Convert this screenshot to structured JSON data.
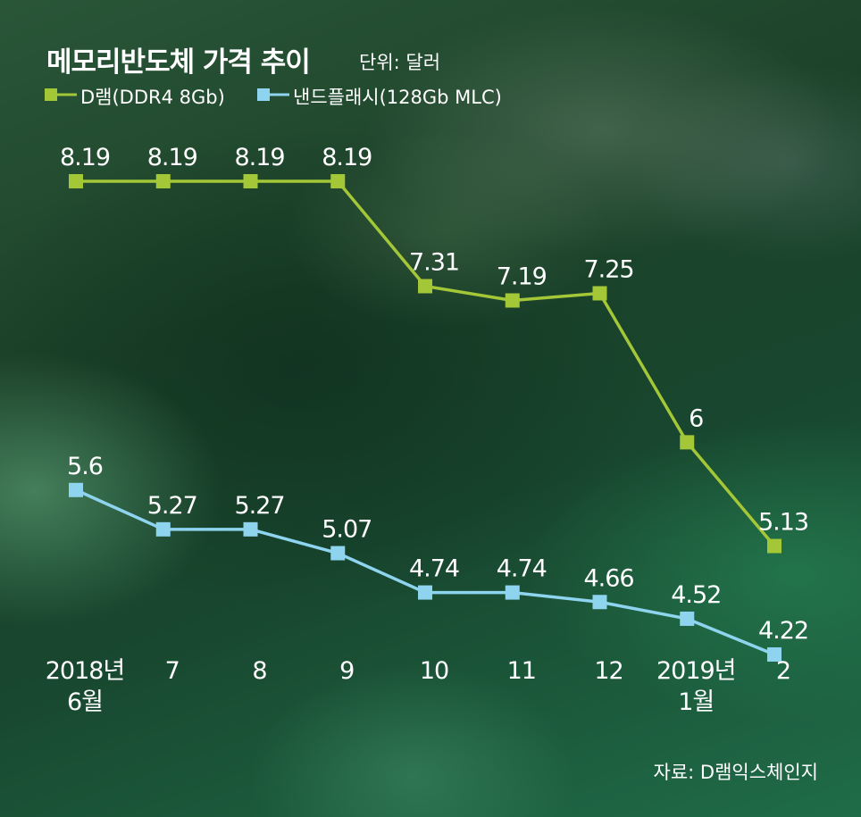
{
  "header": {
    "title": "메모리반도체 가격 추이",
    "unit": "단위: 달러"
  },
  "legend": {
    "dram": "D램(DDR4 8Gb)",
    "nand": "낸드플래시(128Gb MLC)"
  },
  "source": "자료: D램익스체인지",
  "colors": {
    "dram": "#a3c737",
    "nand": "#8fd4ef"
  },
  "chart_data": {
    "type": "line",
    "title": "메모리반도체 가격 추이",
    "unit": "달러",
    "categories": [
      [
        "2018년",
        "6월"
      ],
      [
        "7"
      ],
      [
        "8"
      ],
      [
        "9"
      ],
      [
        "10"
      ],
      [
        "11"
      ],
      [
        "12"
      ],
      [
        "2019년",
        "1월"
      ],
      [
        "2"
      ]
    ],
    "series": [
      {
        "name": "D램(DDR4 8Gb)",
        "labels": [
          "8.19",
          "8.19",
          "8.19",
          "8.19",
          "7.31",
          "7.19",
          "7.25",
          "6",
          "5.13"
        ],
        "values": [
          8.19,
          8.19,
          8.19,
          8.19,
          7.31,
          7.19,
          7.25,
          6,
          5.13
        ]
      },
      {
        "name": "낸드플래시(128Gb MLC)",
        "labels": [
          "5.6",
          "5.27",
          "5.27",
          "5.07",
          "4.74",
          "4.74",
          "4.66",
          "4.52",
          "4.22"
        ],
        "values": [
          5.6,
          5.27,
          5.27,
          5.07,
          4.74,
          4.74,
          4.66,
          4.52,
          4.22
        ]
      }
    ],
    "grid": false,
    "legend_position": "top-left"
  }
}
